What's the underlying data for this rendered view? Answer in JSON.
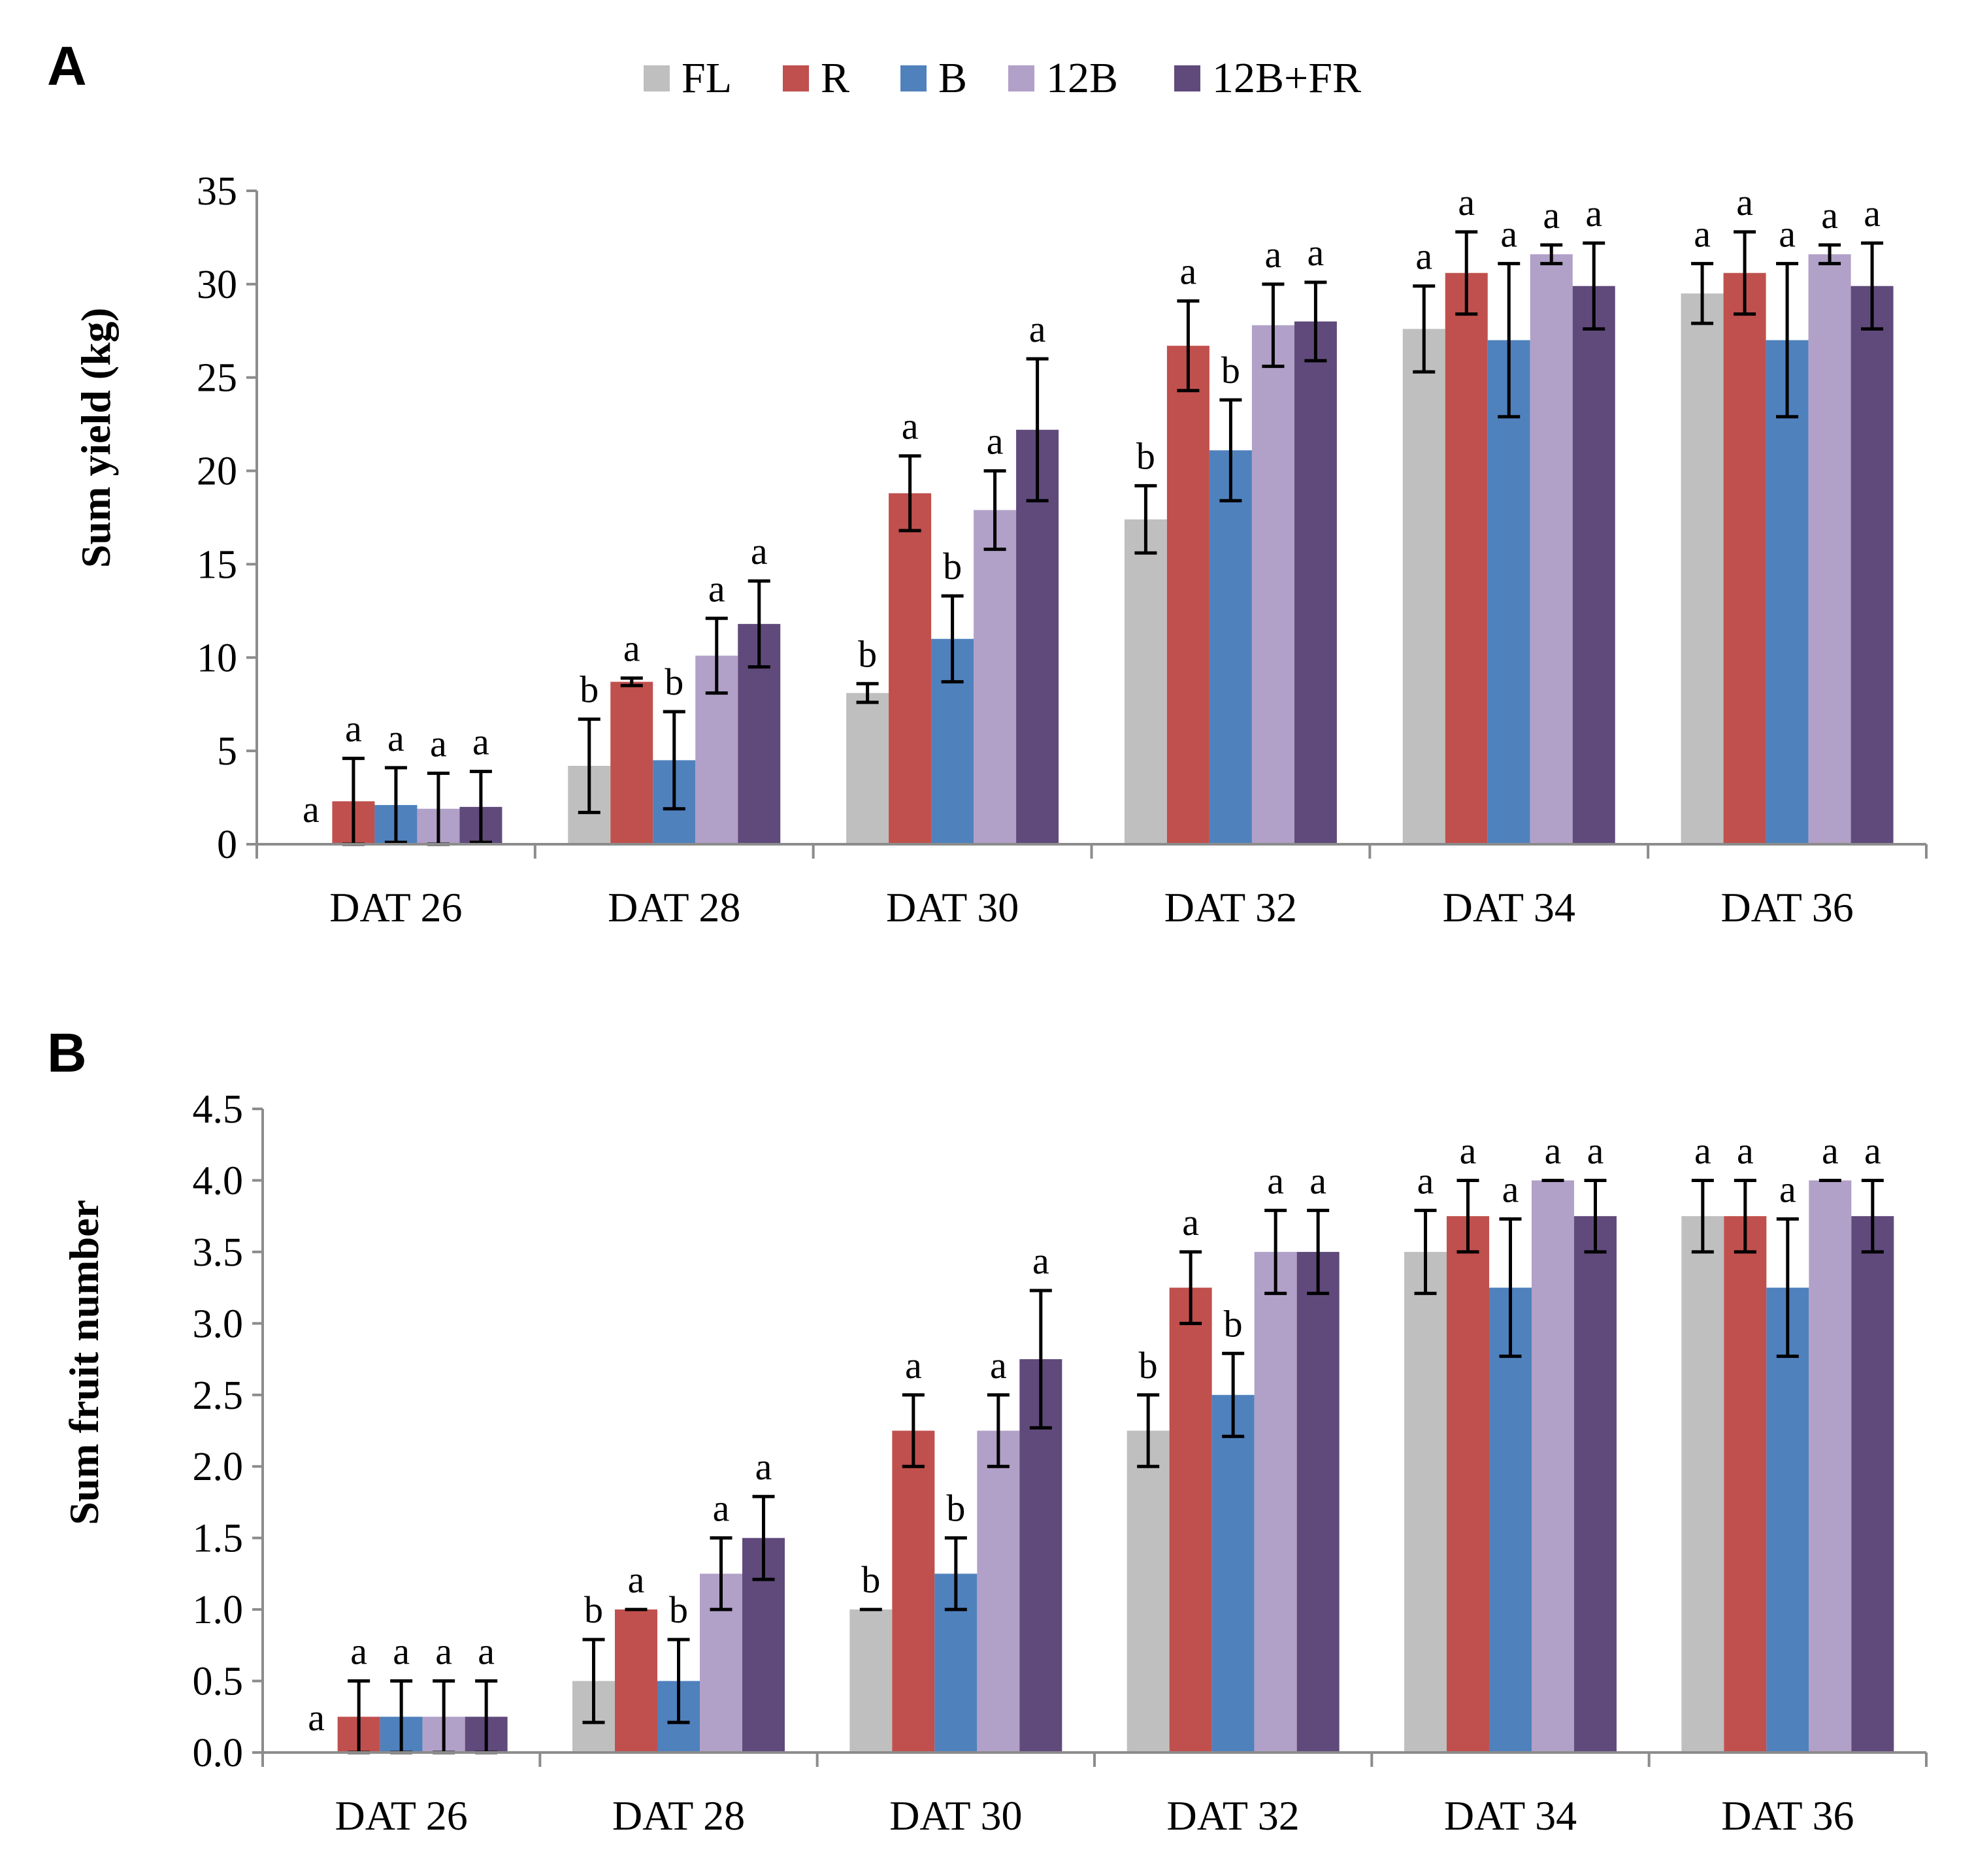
{
  "chart_data": [
    {
      "panel": "A",
      "type": "bar",
      "ylabel": "Sum yield (kg)",
      "xlabel": "",
      "ylim": [
        0,
        35
      ],
      "yticks": [
        "0",
        "5",
        "10",
        "15",
        "20",
        "25",
        "30",
        "35"
      ],
      "categories": [
        "DAT 26",
        "DAT 28",
        "DAT 30",
        "DAT 32",
        "DAT 34",
        "DAT 36"
      ],
      "series": [
        {
          "name": "FL",
          "color": "#bfbfbf",
          "values": [
            0,
            4.2,
            8.1,
            17.4,
            27.6,
            29.5
          ],
          "errors": [
            0,
            2.5,
            0.5,
            1.8,
            2.3,
            1.6
          ],
          "letters": [
            "a",
            "b",
            "b",
            "b",
            "a",
            "a"
          ]
        },
        {
          "name": "R",
          "color": "#c0504d",
          "values": [
            2.3,
            8.7,
            18.8,
            26.7,
            30.6,
            30.6
          ],
          "errors": [
            2.3,
            0.2,
            2.0,
            2.4,
            2.2,
            2.2
          ],
          "letters": [
            "a",
            "a",
            "a",
            "a",
            "a",
            "a"
          ]
        },
        {
          "name": "B",
          "color": "#4f81bd",
          "values": [
            2.1,
            4.5,
            11.0,
            21.1,
            27.0,
            27.0
          ],
          "errors": [
            2.0,
            2.6,
            2.3,
            2.7,
            4.1,
            4.1
          ],
          "letters": [
            "a",
            "b",
            "b",
            "b",
            "a",
            "a"
          ]
        },
        {
          "name": "12B",
          "color": "#b1a0c7",
          "values": [
            1.9,
            10.1,
            17.9,
            27.8,
            31.6,
            31.6
          ],
          "errors": [
            1.9,
            2.0,
            2.1,
            2.2,
            0.5,
            0.5
          ],
          "letters": [
            "a",
            "a",
            "a",
            "a",
            "a",
            "a"
          ]
        },
        {
          "name": "12B+FR",
          "color": "#604a7b",
          "values": [
            2.0,
            11.8,
            22.2,
            28.0,
            29.9,
            29.9
          ],
          "errors": [
            1.9,
            2.3,
            3.8,
            2.1,
            2.3,
            2.3
          ],
          "letters": [
            "a",
            "a",
            "a",
            "a",
            "a",
            "a"
          ]
        }
      ]
    },
    {
      "panel": "B",
      "type": "bar",
      "ylabel": "Sum fruit number",
      "xlabel": "",
      "ylim": [
        0,
        4.5
      ],
      "yticks": [
        "0.0",
        "0.5",
        "1.0",
        "1.5",
        "2.0",
        "2.5",
        "3.0",
        "3.5",
        "4.0",
        "4.5"
      ],
      "categories": [
        "DAT 26",
        "DAT 28",
        "DAT 30",
        "DAT 32",
        "DAT 34",
        "DAT 36"
      ],
      "series": [
        {
          "name": "FL",
          "color": "#bfbfbf",
          "values": [
            0,
            0.5,
            1.0,
            2.25,
            3.5,
            3.75
          ],
          "errors": [
            0,
            0.29,
            0,
            0.25,
            0.29,
            0.25
          ],
          "letters": [
            "a",
            "b",
            "b",
            "b",
            "a",
            "a"
          ]
        },
        {
          "name": "R",
          "color": "#c0504d",
          "values": [
            0.25,
            1.0,
            2.25,
            3.25,
            3.75,
            3.75
          ],
          "errors": [
            0.25,
            0,
            0.25,
            0.25,
            0.25,
            0.25
          ],
          "letters": [
            "a",
            "a",
            "a",
            "a",
            "a",
            "a"
          ]
        },
        {
          "name": "B",
          "color": "#4f81bd",
          "values": [
            0.25,
            0.5,
            1.25,
            2.5,
            3.25,
            3.25
          ],
          "errors": [
            0.25,
            0.29,
            0.25,
            0.29,
            0.48,
            0.48
          ],
          "letters": [
            "a",
            "b",
            "b",
            "b",
            "a",
            "a"
          ]
        },
        {
          "name": "12B",
          "color": "#b1a0c7",
          "values": [
            0.25,
            1.25,
            2.25,
            3.5,
            4.0,
            4.0
          ],
          "errors": [
            0.25,
            0.25,
            0.25,
            0.29,
            0,
            0
          ],
          "letters": [
            "a",
            "a",
            "a",
            "a",
            "a",
            "a"
          ]
        },
        {
          "name": "12B+FR",
          "color": "#604a7b",
          "values": [
            0.25,
            1.5,
            2.75,
            3.5,
            3.75,
            3.75
          ],
          "errors": [
            0.25,
            0.29,
            0.48,
            0.29,
            0.25,
            0.25
          ],
          "letters": [
            "a",
            "a",
            "a",
            "a",
            "a",
            "a"
          ]
        }
      ]
    }
  ],
  "legend": {
    "entries": [
      {
        "label": "FL",
        "color": "#bfbfbf"
      },
      {
        "label": "R",
        "color": "#c0504d"
      },
      {
        "label": "B",
        "color": "#4f81bd"
      },
      {
        "label": "12B",
        "color": "#b1a0c7"
      },
      {
        "label": "12B+FR",
        "color": "#604a7b"
      }
    ]
  }
}
